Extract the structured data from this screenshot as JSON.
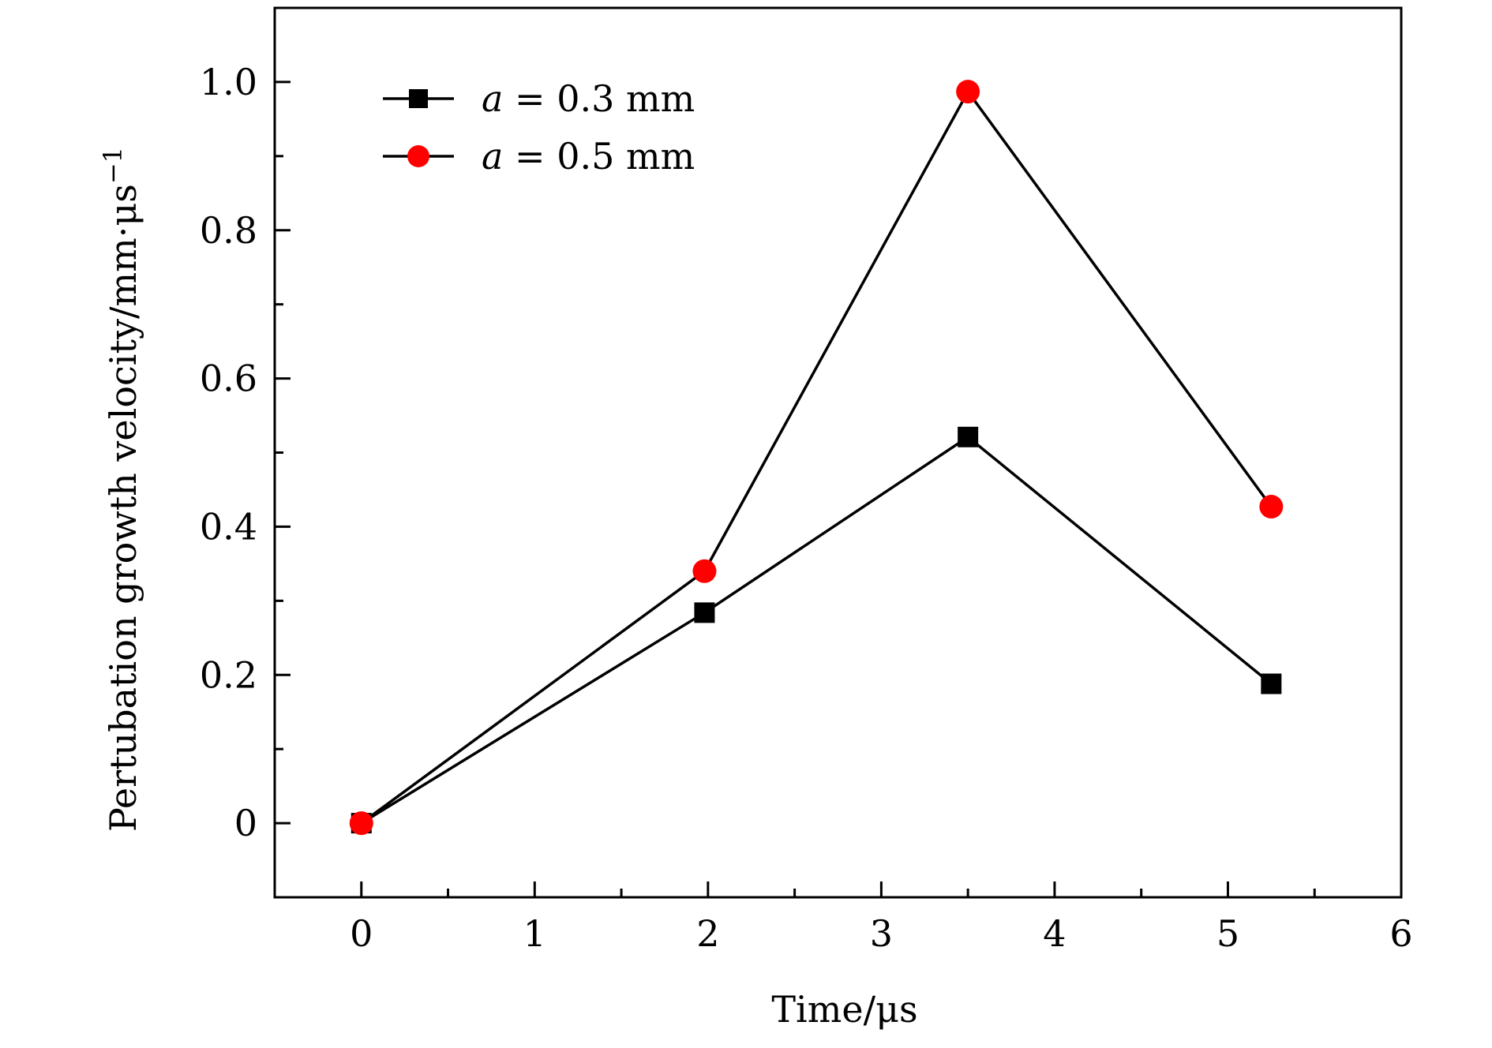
{
  "chart_data": {
    "type": "line",
    "title": "",
    "xlabel": "Time/μs",
    "ylabel": "Pertubation growth velocity/mm·μs",
    "ylabel_superscript": "−1",
    "xlim": [
      -0.5,
      6
    ],
    "ylim": [
      -0.1,
      1.1
    ],
    "x_ticks": [
      {
        "value": 0,
        "label": "0"
      },
      {
        "value": 1,
        "label": "1"
      },
      {
        "value": 2,
        "label": "2"
      },
      {
        "value": 3,
        "label": "3"
      },
      {
        "value": 4,
        "label": "4"
      },
      {
        "value": 5,
        "label": "5"
      },
      {
        "value": 6,
        "label": "6"
      }
    ],
    "y_ticks": [
      {
        "value": 0,
        "label": "0"
      },
      {
        "value": 0.2,
        "label": "0.2"
      },
      {
        "value": 0.4,
        "label": "0.4"
      },
      {
        "value": 0.6,
        "label": "0.6"
      },
      {
        "value": 0.8,
        "label": "0.8"
      },
      {
        "value": 1.0,
        "label": "1.0"
      }
    ],
    "x_minor_step": 0.5,
    "y_minor_step": 0.1,
    "grid": false,
    "legend_position": "top-left",
    "series": [
      {
        "name": "a = 0.3 mm",
        "legend_var": "a",
        "legend_eq": " = ",
        "legend_val": "0.3 mm",
        "marker": "square",
        "color": "#000000",
        "line_color": "#000000",
        "points": [
          {
            "x": 0,
            "y": 0
          },
          {
            "x": 1.98,
            "y": 0.284
          },
          {
            "x": 3.5,
            "y": 0.521
          },
          {
            "x": 5.25,
            "y": 0.188
          }
        ]
      },
      {
        "name": "a = 0.5 mm",
        "legend_var": "a",
        "legend_eq": " = ",
        "legend_val": "0.5 mm",
        "marker": "circle",
        "color": "#ff0000",
        "line_color": "#000000",
        "points": [
          {
            "x": 0,
            "y": 0
          },
          {
            "x": 1.98,
            "y": 0.34
          },
          {
            "x": 3.5,
            "y": 0.987
          },
          {
            "x": 5.25,
            "y": 0.427
          }
        ]
      }
    ]
  }
}
